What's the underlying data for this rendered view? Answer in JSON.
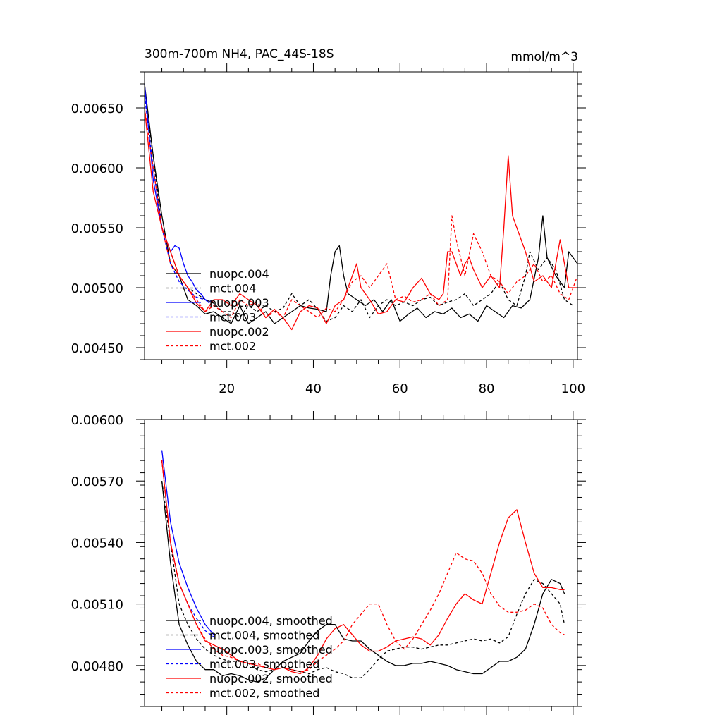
{
  "chart_data": [
    {
      "type": "line",
      "title": "300m-700m NH4, PAC_44S-18S",
      "units": "mmol/m^3",
      "xlim": [
        1,
        101
      ],
      "ylim": [
        0.0044,
        0.0068
      ],
      "yticks": [
        {
          "value": 0.0045,
          "label": "0.00450"
        },
        {
          "value": 0.005,
          "label": "0.00500"
        },
        {
          "value": 0.0055,
          "label": "0.00550"
        },
        {
          "value": 0.006,
          "label": "0.00600"
        },
        {
          "value": 0.0065,
          "label": "0.00650"
        }
      ],
      "xticks": [
        {
          "value": 20,
          "label": "20"
        },
        {
          "value": 40,
          "label": "40"
        },
        {
          "value": 60,
          "label": "60"
        },
        {
          "value": 80,
          "label": "80"
        },
        {
          "value": 100,
          "label": "100"
        }
      ],
      "legend_position": "lower-left",
      "series": [
        {
          "name": "nuopc.004",
          "color": "#000000",
          "dash": "solid",
          "x": [
            1,
            3,
            5,
            7,
            9,
            11,
            13,
            15,
            17,
            19,
            21,
            23,
            25,
            27,
            29,
            31,
            33,
            35,
            37,
            39,
            41,
            43,
            44,
            45,
            46,
            47,
            48,
            50,
            52,
            54,
            56,
            58,
            60,
            62,
            64,
            66,
            68,
            70,
            72,
            74,
            76,
            78,
            80,
            82,
            84,
            86,
            88,
            90,
            92,
            93,
            94,
            96,
            98,
            99,
            101
          ],
          "y": [
            0.0067,
            0.0061,
            0.0056,
            0.0052,
            0.0051,
            0.0049,
            0.00485,
            0.00478,
            0.0048,
            0.00475,
            0.0047,
            0.00485,
            0.0047,
            0.00475,
            0.0048,
            0.0047,
            0.00475,
            0.0048,
            0.00485,
            0.00483,
            0.00482,
            0.0048,
            0.0051,
            0.0053,
            0.00535,
            0.0051,
            0.00495,
            0.0049,
            0.00485,
            0.0049,
            0.0048,
            0.0049,
            0.00472,
            0.00478,
            0.00483,
            0.00475,
            0.0048,
            0.00478,
            0.00483,
            0.00475,
            0.00478,
            0.00472,
            0.00485,
            0.0048,
            0.00475,
            0.00485,
            0.00483,
            0.0049,
            0.00525,
            0.0056,
            0.00525,
            0.0051,
            0.005,
            0.0053,
            0.0052
          ]
        },
        {
          "name": "mct.004",
          "color": "#000000",
          "dash": "dashed",
          "x": [
            1,
            3,
            5,
            7,
            9,
            11,
            13,
            15,
            17,
            19,
            21,
            23,
            25,
            27,
            29,
            31,
            33,
            35,
            37,
            39,
            41,
            43,
            45,
            47,
            49,
            51,
            53,
            55,
            57,
            59,
            61,
            63,
            65,
            67,
            69,
            71,
            73,
            75,
            77,
            79,
            81,
            83,
            85,
            87,
            89,
            90,
            92,
            94,
            96,
            98,
            100
          ],
          "y": [
            0.0066,
            0.0061,
            0.0055,
            0.0053,
            0.0051,
            0.005,
            0.00495,
            0.0049,
            0.00487,
            0.0048,
            0.0048,
            0.00475,
            0.00485,
            0.0048,
            0.00485,
            0.0048,
            0.00483,
            0.00495,
            0.00485,
            0.0049,
            0.00482,
            0.00472,
            0.00475,
            0.00485,
            0.0048,
            0.0049,
            0.00475,
            0.00485,
            0.0049,
            0.00485,
            0.00488,
            0.00485,
            0.0049,
            0.00492,
            0.00485,
            0.00488,
            0.0049,
            0.00495,
            0.00485,
            0.0049,
            0.00495,
            0.00505,
            0.0049,
            0.00485,
            0.0051,
            0.0053,
            0.00515,
            0.00525,
            0.00515,
            0.0049,
            0.00485
          ]
        },
        {
          "name": "nuopc.003",
          "color": "#0000ff",
          "dash": "solid",
          "x": [
            1,
            3,
            5,
            7,
            8,
            9,
            10,
            11,
            12,
            13,
            14,
            15,
            16
          ],
          "y": [
            0.0067,
            0.0059,
            0.0055,
            0.0053,
            0.00535,
            0.00533,
            0.0052,
            0.0051,
            0.00505,
            0.00498,
            0.00495,
            0.0049,
            0.00487
          ]
        },
        {
          "name": "mct.003",
          "color": "#0000ff",
          "dash": "dashed",
          "x": [
            1,
            3,
            5,
            7,
            9,
            11,
            13,
            15,
            17
          ],
          "y": [
            0.0066,
            0.006,
            0.0055,
            0.0052,
            0.00505,
            0.00498,
            0.00492,
            0.0049,
            0.00488
          ]
        },
        {
          "name": "nuopc.002",
          "color": "#ff0000",
          "dash": "solid",
          "x": [
            1,
            3,
            5,
            7,
            9,
            11,
            13,
            15,
            17,
            19,
            21,
            23,
            25,
            27,
            29,
            31,
            33,
            35,
            37,
            39,
            41,
            43,
            45,
            47,
            49,
            50,
            51,
            53,
            55,
            57,
            59,
            61,
            63,
            65,
            67,
            69,
            70,
            71,
            72,
            73,
            74,
            75,
            76,
            77,
            79,
            81,
            83,
            84,
            85,
            86,
            87,
            89,
            91,
            93,
            95,
            97,
            98,
            99,
            101
          ],
          "y": [
            0.0065,
            0.0058,
            0.0055,
            0.0053,
            0.0051,
            0.005,
            0.00487,
            0.0048,
            0.0049,
            0.0049,
            0.00485,
            0.00495,
            0.0049,
            0.00485,
            0.00475,
            0.00482,
            0.00475,
            0.00465,
            0.0048,
            0.00485,
            0.00483,
            0.0047,
            0.00485,
            0.0049,
            0.0051,
            0.0052,
            0.005,
            0.0049,
            0.00478,
            0.0048,
            0.0049,
            0.00488,
            0.005,
            0.00508,
            0.00495,
            0.0049,
            0.00495,
            0.0053,
            0.0053,
            0.0052,
            0.0051,
            0.0052,
            0.00525,
            0.00515,
            0.005,
            0.0051,
            0.005,
            0.0055,
            0.0061,
            0.0056,
            0.0055,
            0.0053,
            0.00505,
            0.0051,
            0.005,
            0.0054,
            0.0052,
            0.005,
            0.005
          ]
        },
        {
          "name": "mct.002",
          "color": "#ff0000",
          "dash": "dashed",
          "x": [
            1,
            3,
            5,
            7,
            9,
            11,
            13,
            15,
            17,
            19,
            21,
            23,
            25,
            27,
            29,
            31,
            33,
            35,
            37,
            39,
            41,
            43,
            45,
            47,
            49,
            51,
            53,
            55,
            57,
            59,
            61,
            63,
            65,
            67,
            69,
            71,
            72,
            73,
            75,
            77,
            79,
            81,
            83,
            85,
            87,
            89,
            91,
            93,
            95,
            97,
            99,
            101
          ],
          "y": [
            0.0065,
            0.006,
            0.0055,
            0.0052,
            0.0051,
            0.005,
            0.0049,
            0.0048,
            0.00485,
            0.0048,
            0.00475,
            0.0049,
            0.00485,
            0.00488,
            0.00475,
            0.0048,
            0.00475,
            0.0049,
            0.00485,
            0.0048,
            0.00475,
            0.00483,
            0.0048,
            0.0049,
            0.00505,
            0.0051,
            0.005,
            0.0051,
            0.0052,
            0.0049,
            0.00493,
            0.00488,
            0.0049,
            0.00495,
            0.00485,
            0.0049,
            0.0056,
            0.0054,
            0.0051,
            0.00545,
            0.0053,
            0.0051,
            0.00505,
            0.00495,
            0.00505,
            0.0051,
            0.0052,
            0.00505,
            0.0051,
            0.00495,
            0.0049,
            0.0051
          ]
        }
      ]
    },
    {
      "type": "line",
      "xlim": [
        1,
        101
      ],
      "ylim": [
        0.0046,
        0.006
      ],
      "yticks": [
        {
          "value": 0.0048,
          "label": "0.00480"
        },
        {
          "value": 0.0051,
          "label": "0.00510"
        },
        {
          "value": 0.0054,
          "label": "0.00540"
        },
        {
          "value": 0.0057,
          "label": "0.00570"
        },
        {
          "value": 0.006,
          "label": "0.00600"
        }
      ],
      "legend_position": "lower-left",
      "series": [
        {
          "name": "nuopc.004, smoothed",
          "color": "#000000",
          "dash": "solid",
          "x": [
            5,
            7,
            9,
            11,
            13,
            15,
            17,
            19,
            21,
            23,
            25,
            27,
            29,
            31,
            33,
            35,
            37,
            39,
            41,
            43,
            45,
            47,
            49,
            51,
            53,
            55,
            57,
            59,
            61,
            63,
            65,
            67,
            69,
            71,
            73,
            75,
            77,
            79,
            81,
            83,
            85,
            87,
            89,
            91,
            93,
            95,
            97,
            98
          ],
          "y": [
            0.0057,
            0.0053,
            0.005,
            0.0049,
            0.00482,
            0.00478,
            0.00478,
            0.00475,
            0.00476,
            0.00475,
            0.00473,
            0.00472,
            0.00474,
            0.00478,
            0.00482,
            0.00484,
            0.00486,
            0.00492,
            0.00497,
            0.005,
            0.005,
            0.00493,
            0.00492,
            0.00492,
            0.00488,
            0.00485,
            0.00482,
            0.0048,
            0.0048,
            0.00481,
            0.00481,
            0.00482,
            0.00481,
            0.0048,
            0.00478,
            0.00477,
            0.00476,
            0.00476,
            0.00479,
            0.00482,
            0.00482,
            0.00484,
            0.00488,
            0.005,
            0.00515,
            0.00522,
            0.0052,
            0.00515
          ]
        },
        {
          "name": "mct.004, smoothed",
          "color": "#000000",
          "dash": "dashed",
          "x": [
            5,
            7,
            9,
            11,
            13,
            15,
            17,
            19,
            21,
            23,
            25,
            27,
            29,
            31,
            33,
            35,
            37,
            39,
            41,
            43,
            45,
            47,
            49,
            51,
            53,
            55,
            57,
            59,
            61,
            63,
            65,
            67,
            69,
            71,
            73,
            75,
            77,
            79,
            81,
            83,
            85,
            87,
            89,
            91,
            93,
            95,
            97,
            98
          ],
          "y": [
            0.0057,
            0.0054,
            0.0051,
            0.005,
            0.00493,
            0.00488,
            0.00485,
            0.00483,
            0.00482,
            0.00482,
            0.00481,
            0.00478,
            0.00477,
            0.00478,
            0.00479,
            0.00478,
            0.00477,
            0.00476,
            0.00478,
            0.00479,
            0.00477,
            0.00476,
            0.00474,
            0.00474,
            0.00478,
            0.00483,
            0.00487,
            0.00488,
            0.00489,
            0.00489,
            0.00488,
            0.00489,
            0.0049,
            0.0049,
            0.00491,
            0.00492,
            0.00493,
            0.00492,
            0.00493,
            0.00491,
            0.00494,
            0.00505,
            0.00515,
            0.00522,
            0.0052,
            0.00515,
            0.0051,
            0.005
          ]
        },
        {
          "name": "nuopc.003, smoothed",
          "color": "#0000ff",
          "dash": "solid",
          "x": [
            5,
            7,
            9,
            11,
            13,
            15,
            17
          ],
          "y": [
            0.00585,
            0.0055,
            0.0053,
            0.00518,
            0.00508,
            0.005,
            0.00495
          ]
        },
        {
          "name": "mct.003, smoothed",
          "color": "#0000ff",
          "dash": "dashed",
          "x": [
            5,
            7,
            9,
            11,
            13,
            15,
            17
          ],
          "y": [
            0.0058,
            0.0054,
            0.0052,
            0.0051,
            0.00503,
            0.00497,
            0.00494
          ]
        },
        {
          "name": "nuopc.002, smoothed",
          "color": "#ff0000",
          "dash": "solid",
          "x": [
            5,
            7,
            9,
            11,
            13,
            15,
            17,
            19,
            21,
            23,
            25,
            27,
            29,
            31,
            33,
            35,
            37,
            39,
            41,
            43,
            45,
            47,
            49,
            51,
            53,
            55,
            57,
            59,
            61,
            63,
            65,
            67,
            69,
            71,
            73,
            75,
            77,
            79,
            81,
            83,
            85,
            87,
            89,
            91,
            93,
            95,
            97,
            98
          ],
          "y": [
            0.0058,
            0.0054,
            0.0052,
            0.0051,
            0.005,
            0.00492,
            0.0049,
            0.00488,
            0.00485,
            0.00482,
            0.00481,
            0.0048,
            0.00479,
            0.00478,
            0.00479,
            0.00477,
            0.00476,
            0.00479,
            0.00485,
            0.00493,
            0.00498,
            0.005,
            0.00495,
            0.0049,
            0.00487,
            0.00487,
            0.00489,
            0.00492,
            0.00493,
            0.00494,
            0.00493,
            0.0049,
            0.00495,
            0.00503,
            0.0051,
            0.00515,
            0.00512,
            0.0051,
            0.00525,
            0.0054,
            0.00552,
            0.00556,
            0.0054,
            0.00525,
            0.00518,
            0.00518,
            0.00517,
            0.00517
          ]
        },
        {
          "name": "mct.002, smoothed",
          "color": "#ff0000",
          "dash": "dashed",
          "x": [
            5,
            7,
            9,
            11,
            13,
            15,
            17,
            19,
            21,
            23,
            25,
            27,
            29,
            31,
            33,
            35,
            37,
            39,
            41,
            43,
            45,
            47,
            49,
            51,
            53,
            55,
            57,
            59,
            61,
            63,
            65,
            67,
            69,
            71,
            73,
            75,
            77,
            79,
            81,
            83,
            85,
            87,
            89,
            91,
            93,
            95,
            97,
            98
          ],
          "y": [
            0.0058,
            0.0054,
            0.0052,
            0.0051,
            0.005,
            0.00493,
            0.00488,
            0.00485,
            0.00484,
            0.00482,
            0.00481,
            0.00481,
            0.00479,
            0.00478,
            0.00479,
            0.00478,
            0.00477,
            0.00478,
            0.00482,
            0.00485,
            0.00488,
            0.00492,
            0.005,
            0.00505,
            0.0051,
            0.0051,
            0.005,
            0.00492,
            0.00488,
            0.00493,
            0.005,
            0.00507,
            0.00515,
            0.00525,
            0.00535,
            0.00532,
            0.00531,
            0.00525,
            0.00515,
            0.00509,
            0.00506,
            0.00506,
            0.00507,
            0.0051,
            0.00508,
            0.005,
            0.00496,
            0.00495
          ]
        }
      ]
    }
  ]
}
